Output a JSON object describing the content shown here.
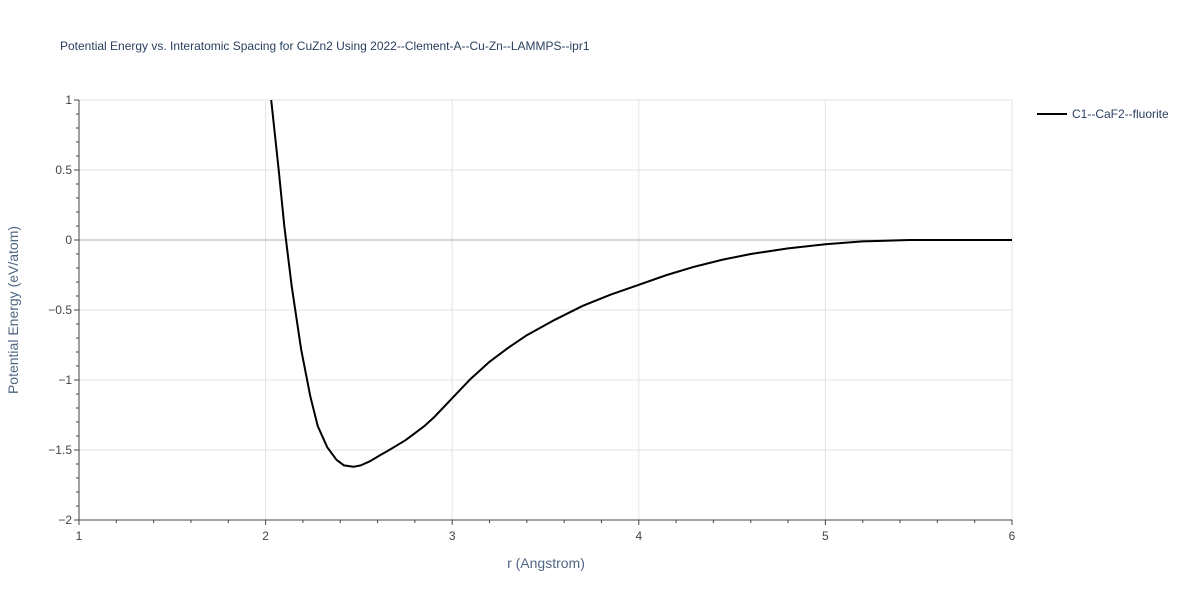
{
  "chart_data": {
    "type": "line",
    "title": "Potential Energy vs. Interatomic Spacing for CuZn2 Using 2022--Clement-A--Cu-Zn--LAMMPS--ipr1",
    "xlabel": "r (Angstrom)",
    "ylabel": "Potential Energy (eV/atom)",
    "xlim": [
      1,
      6
    ],
    "ylim": [
      -2,
      1
    ],
    "xticks": [
      1,
      2,
      3,
      4,
      5,
      6
    ],
    "xtick_labels": [
      "1",
      "2",
      "3",
      "4",
      "5",
      "6"
    ],
    "yticks": [
      -2,
      -1.5,
      -1,
      -0.5,
      0,
      0.5,
      1
    ],
    "ytick_labels": [
      "−2",
      "−1.5",
      "−1",
      "−0.5",
      "0",
      "0.5",
      "1"
    ],
    "grid": true,
    "legend_position": "top-right",
    "series": [
      {
        "name": "C1--CaF2--fluorite",
        "color": "#000000",
        "x": [
          2.03,
          2.07,
          2.1,
          2.14,
          2.19,
          2.24,
          2.28,
          2.33,
          2.38,
          2.42,
          2.47,
          2.51,
          2.56,
          2.61,
          2.65,
          2.7,
          2.75,
          2.8,
          2.85,
          2.9,
          2.95,
          3.0,
          3.05,
          3.1,
          3.15,
          3.2,
          3.3,
          3.4,
          3.55,
          3.7,
          3.85,
          4.0,
          4.15,
          4.3,
          4.45,
          4.6,
          4.8,
          5.0,
          5.2,
          5.45,
          5.7,
          6.0
        ],
        "y": [
          1.0,
          0.5,
          0.1,
          -0.33,
          -0.78,
          -1.12,
          -1.33,
          -1.48,
          -1.57,
          -1.61,
          -1.62,
          -1.61,
          -1.58,
          -1.54,
          -1.51,
          -1.47,
          -1.43,
          -1.38,
          -1.33,
          -1.27,
          -1.2,
          -1.13,
          -1.06,
          -0.99,
          -0.93,
          -0.87,
          -0.77,
          -0.68,
          -0.57,
          -0.47,
          -0.39,
          -0.32,
          -0.25,
          -0.19,
          -0.14,
          -0.1,
          -0.06,
          -0.03,
          -0.01,
          0.0,
          0.0,
          0.0
        ]
      }
    ]
  }
}
